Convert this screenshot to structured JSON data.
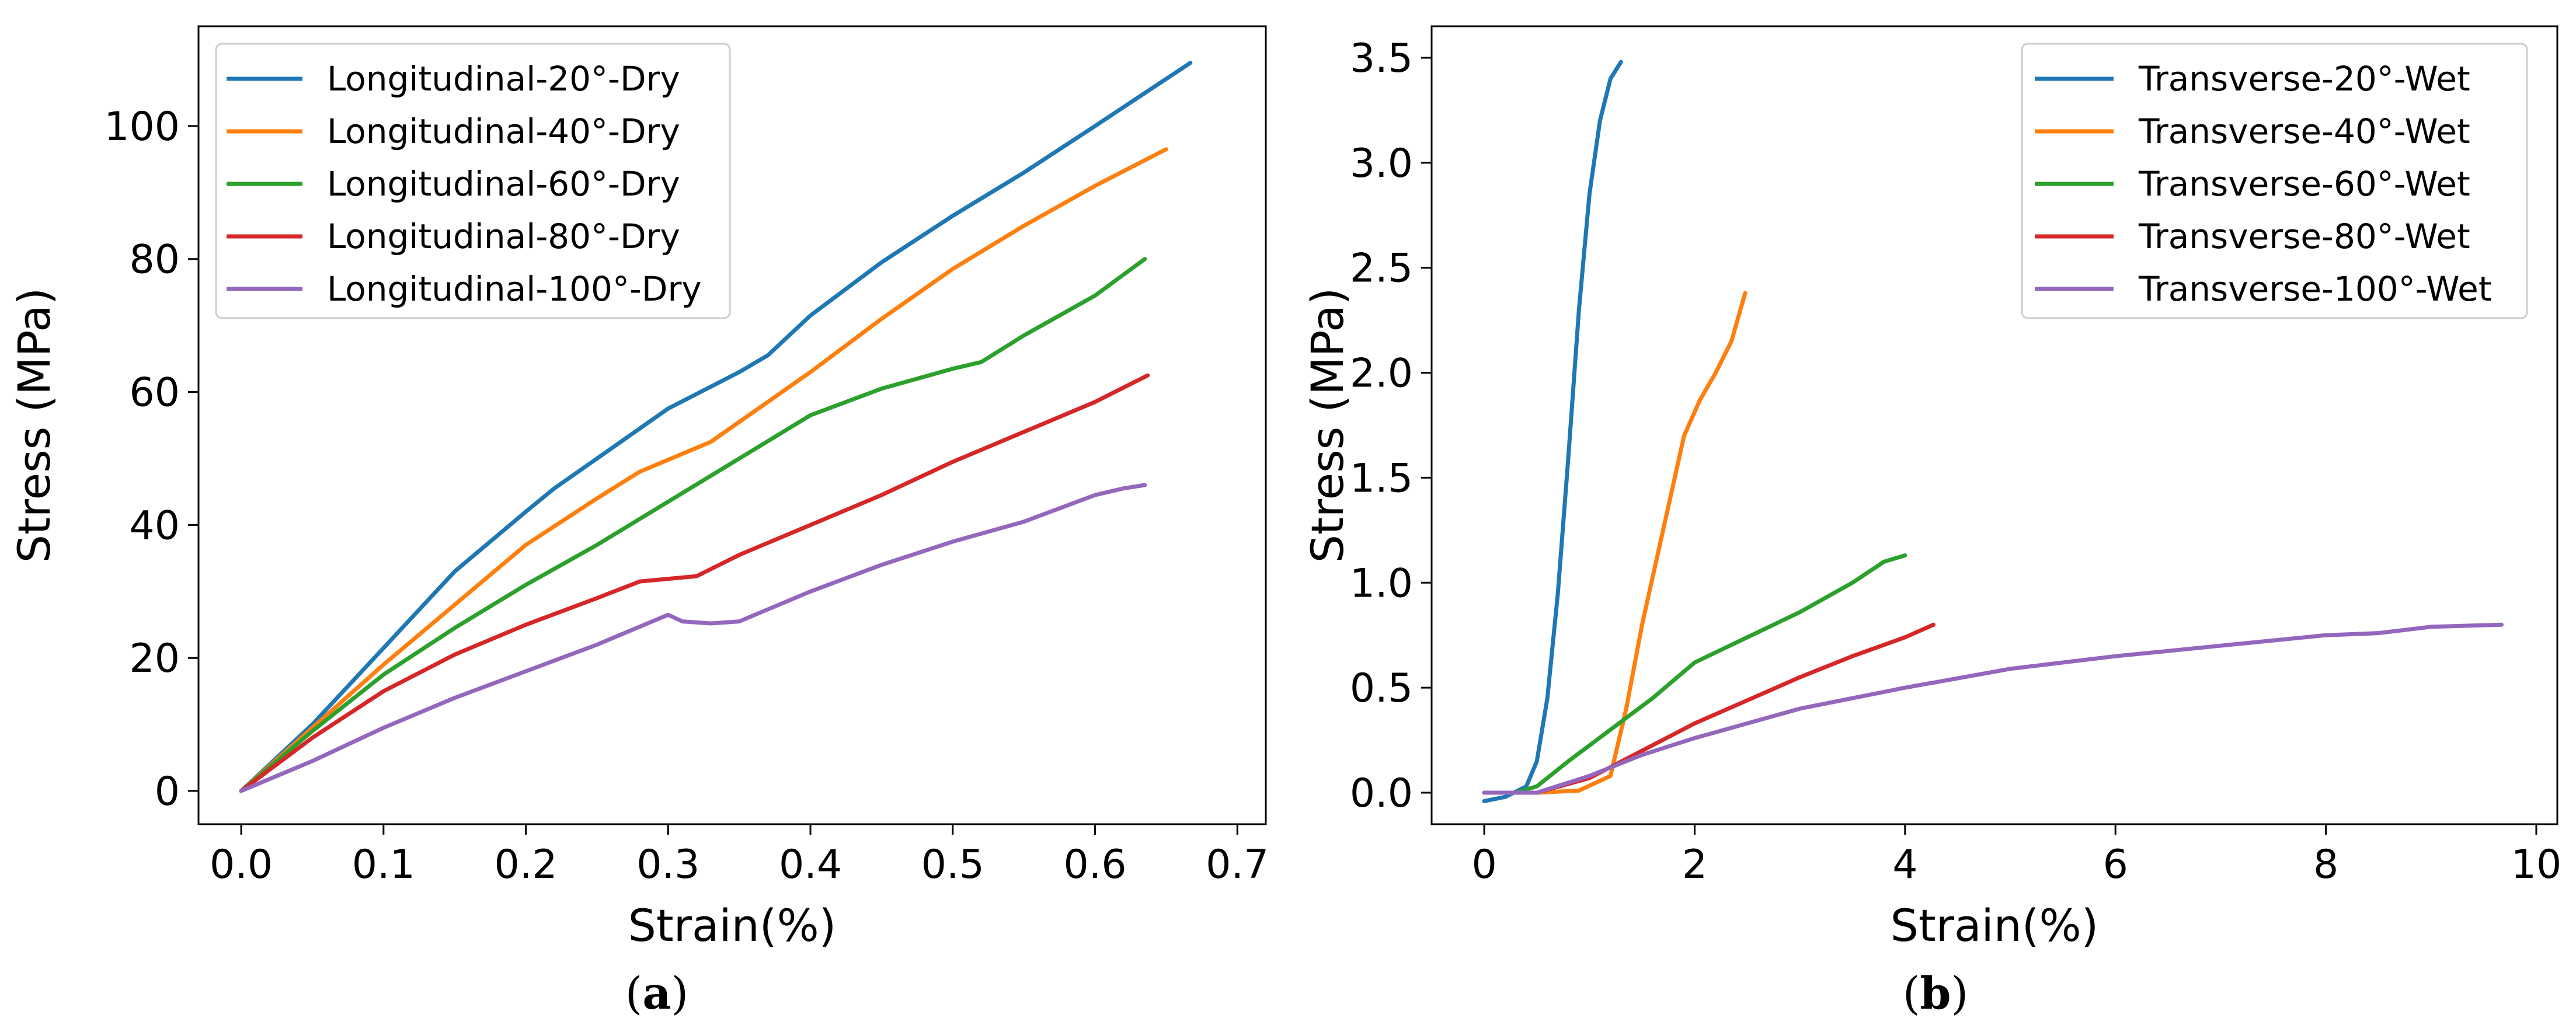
{
  "chart_data": [
    {
      "type": "line",
      "panel_label": "(a)",
      "panel_letter": "a",
      "xlabel": "Strain(%)",
      "ylabel": "Stress (MPa)",
      "xlim": [
        -0.03,
        0.72
      ],
      "ylim": [
        -5,
        115
      ],
      "xticks": [
        0.0,
        0.1,
        0.2,
        0.3,
        0.4,
        0.5,
        0.6,
        0.7
      ],
      "xtick_labels": [
        "0.0",
        "0.1",
        "0.2",
        "0.3",
        "0.4",
        "0.5",
        "0.6",
        "0.7"
      ],
      "yticks": [
        0,
        20,
        40,
        60,
        80,
        100
      ],
      "ytick_labels": [
        "0",
        "20",
        "40",
        "60",
        "80",
        "100"
      ],
      "legend_position": "top-left",
      "grid": false,
      "series": [
        {
          "name": "Longitudinal-20°-Dry",
          "color": "#1f77b4",
          "points": [
            [
              0,
              0
            ],
            [
              0.05,
              10
            ],
            [
              0.1,
              21.5
            ],
            [
              0.15,
              33
            ],
            [
              0.2,
              42
            ],
            [
              0.22,
              45.5
            ],
            [
              0.25,
              50
            ],
            [
              0.3,
              57.5
            ],
            [
              0.35,
              63
            ],
            [
              0.37,
              65.5
            ],
            [
              0.4,
              71.5
            ],
            [
              0.45,
              79.5
            ],
            [
              0.5,
              86.5
            ],
            [
              0.55,
              93
            ],
            [
              0.6,
              100
            ],
            [
              0.667,
              109.5
            ]
          ]
        },
        {
          "name": "Longitudinal-40°-Dry",
          "color": "#ff7f0e",
          "points": [
            [
              0,
              0
            ],
            [
              0.05,
              9.5
            ],
            [
              0.1,
              19
            ],
            [
              0.15,
              28
            ],
            [
              0.2,
              37
            ],
            [
              0.25,
              44
            ],
            [
              0.28,
              48
            ],
            [
              0.33,
              52.5
            ],
            [
              0.4,
              63
            ],
            [
              0.45,
              71
            ],
            [
              0.5,
              78.5
            ],
            [
              0.55,
              85
            ],
            [
              0.6,
              91
            ],
            [
              0.65,
              96.5
            ]
          ]
        },
        {
          "name": "Longitudinal-60°-Dry",
          "color": "#2ca02c",
          "points": [
            [
              0,
              0
            ],
            [
              0.05,
              9
            ],
            [
              0.1,
              17.5
            ],
            [
              0.15,
              24.5
            ],
            [
              0.2,
              31
            ],
            [
              0.25,
              37
            ],
            [
              0.3,
              43.5
            ],
            [
              0.35,
              50
            ],
            [
              0.4,
              56.5
            ],
            [
              0.45,
              60.5
            ],
            [
              0.5,
              63.5
            ],
            [
              0.52,
              64.5
            ],
            [
              0.55,
              68.5
            ],
            [
              0.6,
              74.5
            ],
            [
              0.635,
              80
            ]
          ]
        },
        {
          "name": "Longitudinal-80°-Dry",
          "color": "#d62728",
          "points": [
            [
              0,
              0
            ],
            [
              0.05,
              8
            ],
            [
              0.1,
              15
            ],
            [
              0.15,
              20.5
            ],
            [
              0.2,
              25
            ],
            [
              0.25,
              29
            ],
            [
              0.28,
              31.5
            ],
            [
              0.32,
              32.3
            ],
            [
              0.35,
              35.5
            ],
            [
              0.4,
              40
            ],
            [
              0.45,
              44.5
            ],
            [
              0.5,
              49.5
            ],
            [
              0.55,
              54
            ],
            [
              0.6,
              58.5
            ],
            [
              0.637,
              62.5
            ]
          ]
        },
        {
          "name": "Longitudinal-100°-Dry",
          "color": "#9467bd",
          "points": [
            [
              0,
              0
            ],
            [
              0.05,
              4.5
            ],
            [
              0.1,
              9.5
            ],
            [
              0.15,
              14
            ],
            [
              0.2,
              18
            ],
            [
              0.25,
              22
            ],
            [
              0.3,
              26.5
            ],
            [
              0.31,
              25.5
            ],
            [
              0.33,
              25.2
            ],
            [
              0.35,
              25.5
            ],
            [
              0.4,
              30
            ],
            [
              0.45,
              34
            ],
            [
              0.5,
              37.5
            ],
            [
              0.55,
              40.5
            ],
            [
              0.6,
              44.5
            ],
            [
              0.62,
              45.5
            ],
            [
              0.635,
              46
            ]
          ]
        }
      ]
    },
    {
      "type": "line",
      "panel_label": "(b)",
      "panel_letter": "b",
      "xlabel": "Strain(%)",
      "ylabel": "Stress (MPa)",
      "xlim": [
        -0.5,
        10.2
      ],
      "ylim": [
        -0.15,
        3.65
      ],
      "xticks": [
        0,
        2,
        4,
        6,
        8,
        10
      ],
      "xtick_labels": [
        "0",
        "2",
        "4",
        "6",
        "8",
        "10"
      ],
      "yticks": [
        0.0,
        0.5,
        1.0,
        1.5,
        2.0,
        2.5,
        3.0,
        3.5
      ],
      "ytick_labels": [
        "0.0",
        "0.5",
        "1.0",
        "1.5",
        "2.0",
        "2.5",
        "3.0",
        "3.5"
      ],
      "legend_position": "top-right",
      "grid": false,
      "series": [
        {
          "name": "Transverse-20°-Wet",
          "color": "#1f77b4",
          "points": [
            [
              0,
              -0.04
            ],
            [
              0.2,
              -0.02
            ],
            [
              0.4,
              0.03
            ],
            [
              0.5,
              0.15
            ],
            [
              0.6,
              0.45
            ],
            [
              0.7,
              0.95
            ],
            [
              0.8,
              1.6
            ],
            [
              0.9,
              2.3
            ],
            [
              1.0,
              2.85
            ],
            [
              1.1,
              3.2
            ],
            [
              1.2,
              3.4
            ],
            [
              1.3,
              3.48
            ]
          ]
        },
        {
          "name": "Transverse-40°-Wet",
          "color": "#ff7f0e",
          "points": [
            [
              0,
              0
            ],
            [
              0.5,
              0
            ],
            [
              0.9,
              0.01
            ],
            [
              1.2,
              0.08
            ],
            [
              1.35,
              0.4
            ],
            [
              1.5,
              0.8
            ],
            [
              1.7,
              1.25
            ],
            [
              1.9,
              1.7
            ],
            [
              2.05,
              1.87
            ],
            [
              2.2,
              2.0
            ],
            [
              2.35,
              2.15
            ],
            [
              2.48,
              2.38
            ]
          ]
        },
        {
          "name": "Transverse-60°-Wet",
          "color": "#2ca02c",
          "points": [
            [
              0,
              0
            ],
            [
              0.3,
              0
            ],
            [
              0.5,
              0.03
            ],
            [
              0.8,
              0.15
            ],
            [
              1.2,
              0.3
            ],
            [
              1.6,
              0.45
            ],
            [
              2.0,
              0.62
            ],
            [
              2.5,
              0.74
            ],
            [
              3.0,
              0.86
            ],
            [
              3.5,
              1.0
            ],
            [
              3.8,
              1.1
            ],
            [
              4.0,
              1.13
            ]
          ]
        },
        {
          "name": "Transverse-80°-Wet",
          "color": "#d62728",
          "points": [
            [
              0,
              0
            ],
            [
              0.5,
              0
            ],
            [
              1.0,
              0.07
            ],
            [
              1.5,
              0.2
            ],
            [
              2.0,
              0.33
            ],
            [
              2.5,
              0.44
            ],
            [
              3.0,
              0.55
            ],
            [
              3.5,
              0.65
            ],
            [
              4.0,
              0.74
            ],
            [
              4.27,
              0.8
            ]
          ]
        },
        {
          "name": "Transverse-100°-Wet",
          "color": "#9467bd",
          "points": [
            [
              0,
              0
            ],
            [
              0.5,
              0
            ],
            [
              1.0,
              0.08
            ],
            [
              1.5,
              0.18
            ],
            [
              2.0,
              0.26
            ],
            [
              3.0,
              0.4
            ],
            [
              4.0,
              0.5
            ],
            [
              5.0,
              0.59
            ],
            [
              6.0,
              0.65
            ],
            [
              7.0,
              0.7
            ],
            [
              8.0,
              0.75
            ],
            [
              8.5,
              0.76
            ],
            [
              9.0,
              0.79
            ],
            [
              9.67,
              0.8
            ]
          ]
        }
      ]
    }
  ]
}
